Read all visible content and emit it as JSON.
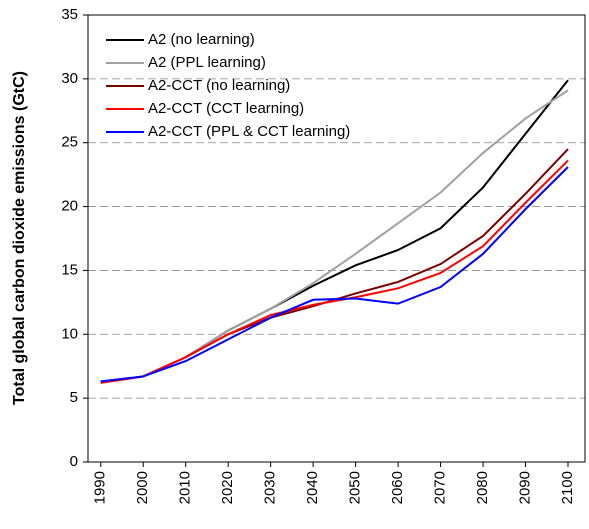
{
  "chart_data": {
    "type": "line",
    "ylabel": "Total global carbon dioxide emissions (GtC)",
    "x": [
      1990,
      2000,
      2010,
      2020,
      2030,
      2040,
      2050,
      2060,
      2070,
      2080,
      2090,
      2100
    ],
    "xlim": [
      1987,
      2104
    ],
    "xticks": [
      1990,
      2000,
      2010,
      2020,
      2030,
      2040,
      2050,
      2060,
      2070,
      2080,
      2090,
      2100
    ],
    "ylim": [
      0,
      35
    ],
    "yticks": [
      0,
      5,
      10,
      15,
      20,
      25,
      30,
      35
    ],
    "grid": true,
    "legend": "upper left",
    "series": [
      {
        "name": "A2 (no learning)",
        "color": "#000000",
        "values": [
          6.3,
          6.7,
          8.2,
          10.3,
          12.0,
          13.8,
          15.4,
          16.6,
          18.3,
          21.5,
          25.7,
          29.9
        ]
      },
      {
        "name": "A2 (PPL learning)",
        "color": "#a0a0a0",
        "values": [
          6.3,
          6.7,
          8.2,
          10.3,
          12.0,
          14.0,
          16.3,
          18.7,
          21.1,
          24.2,
          26.9,
          29.1
        ]
      },
      {
        "name": "A2-CCT (no learning)",
        "color": "#7a0000",
        "values": [
          6.2,
          6.7,
          8.2,
          10.0,
          11.3,
          12.2,
          13.2,
          14.1,
          15.5,
          17.7,
          21.0,
          24.5
        ]
      },
      {
        "name": "A2-CCT (CCT learning)",
        "color": "#ff0000",
        "values": [
          6.2,
          6.7,
          8.2,
          10.0,
          11.5,
          12.3,
          12.9,
          13.6,
          14.8,
          16.9,
          20.3,
          23.6
        ]
      },
      {
        "name": "A2-CCT (PPL & CCT learning)",
        "color": "#0000ff",
        "values": [
          6.3,
          6.7,
          7.9,
          9.6,
          11.3,
          12.7,
          12.8,
          12.4,
          13.7,
          16.3,
          19.8,
          23.1
        ]
      }
    ]
  }
}
